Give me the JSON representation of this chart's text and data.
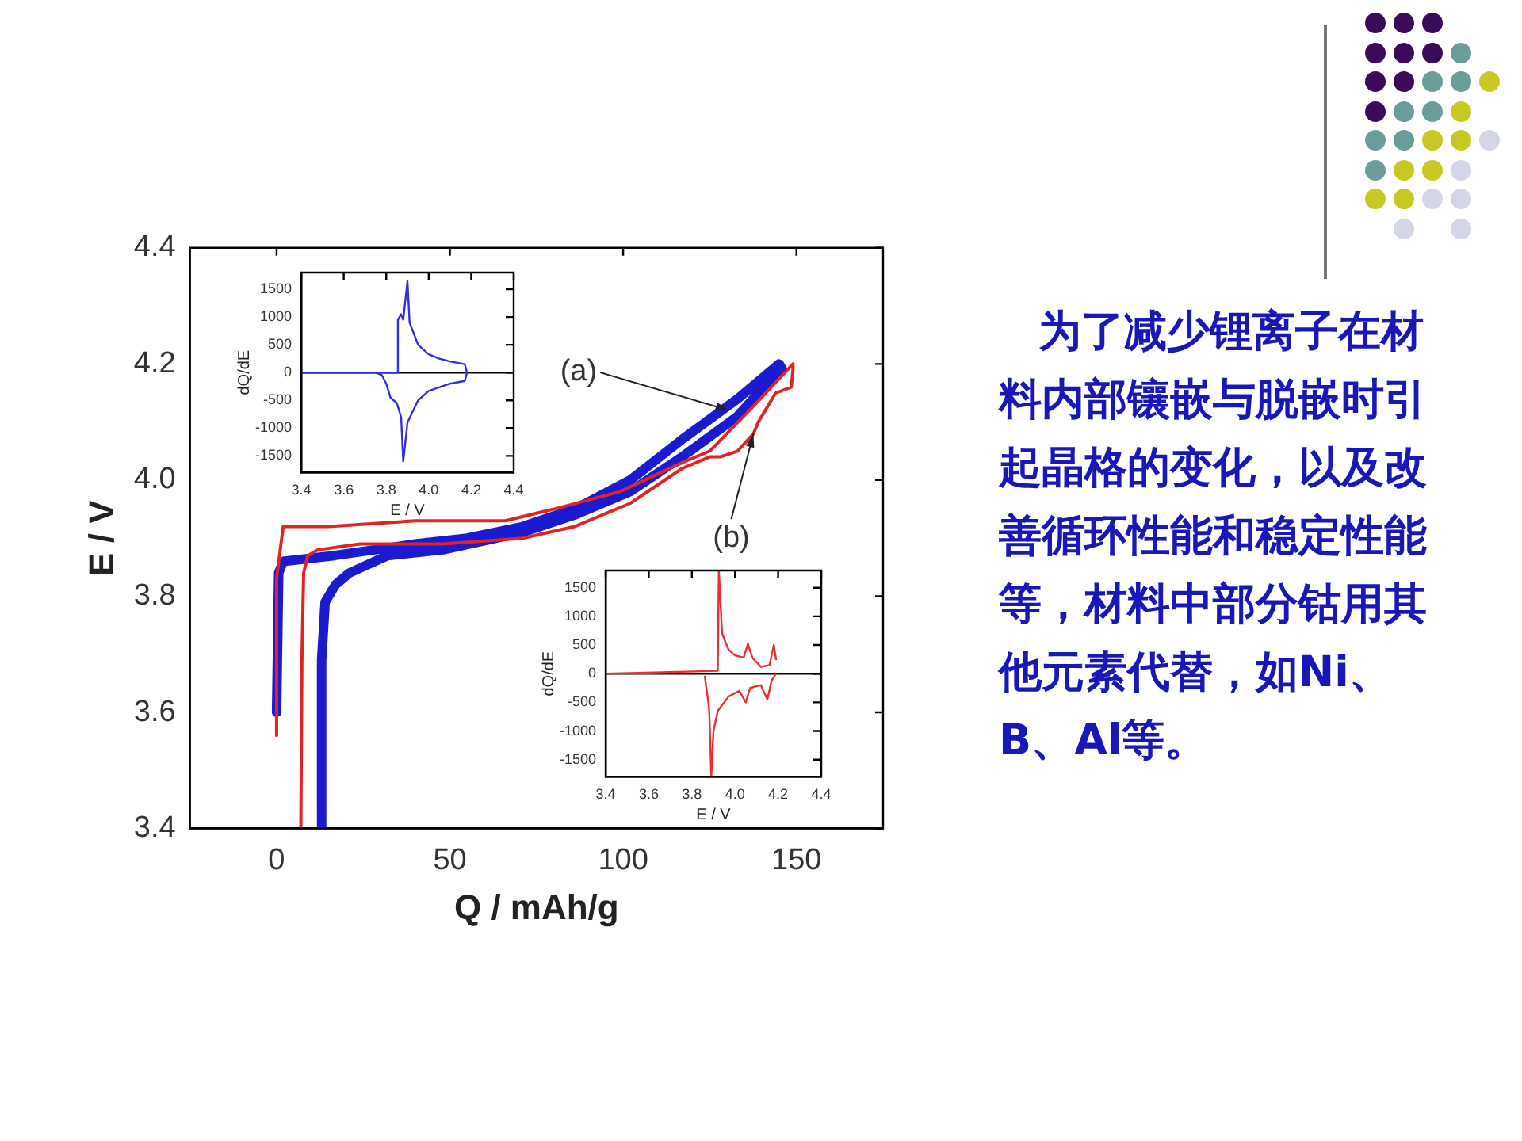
{
  "chart_data": [
    {
      "type": "line",
      "xlabel": "Q / mAh/g",
      "ylabel": "E / V",
      "xlim": [
        -25,
        175
      ],
      "ylim": [
        3.4,
        4.4
      ],
      "xticks": [
        0,
        50,
        100,
        150
      ],
      "yticks": [
        3.4,
        3.6,
        3.8,
        {
          "value": 4,
          "label": "4.0"
        },
        4.2,
        4.4
      ],
      "series": [
        {
          "color": "#e02424",
          "x": [
            0,
            0,
            1.9,
            15,
            40,
            66,
            80,
            99,
            117,
            125,
            138,
            149,
            149,
            148.5,
            144,
            139,
            137.6,
            133,
            128,
            125,
            117,
            102,
            86,
            71,
            48,
            24,
            12,
            9,
            7.8,
            7.3,
            7
          ],
          "values": [
            3.56,
            3.83,
            3.92,
            3.92,
            3.93,
            3.93,
            3.95,
            3.98,
            4.03,
            4.05,
            4.13,
            4.2,
            4.19,
            4.16,
            4.15,
            4.1,
            4.08,
            4.05,
            4.04,
            4.04,
            4.02,
            3.96,
            3.92,
            3.9,
            3.89,
            3.89,
            3.88,
            3.87,
            3.84,
            3.69,
            3.4
          ]
        },
        {
          "color": "#1a1ad0",
          "x": [
            0,
            0.6,
            1.9,
            16.6,
            40,
            55,
            71,
            86,
            102,
            117,
            133,
            145,
            146,
            139,
            133,
            117,
            102,
            86,
            71,
            48,
            32,
            21,
            17,
            14,
            13,
            13
          ],
          "values": [
            3.6,
            3.84,
            3.86,
            3.87,
            3.89,
            3.9,
            3.92,
            3.95,
            4.0,
            4.07,
            4.14,
            4.2,
            4.19,
            4.15,
            4.11,
            4.04,
            3.98,
            3.94,
            3.91,
            3.88,
            3.87,
            3.84,
            3.82,
            3.79,
            3.69,
            3.4
          ]
        }
      ],
      "annotations": [
        {
          "text": "(a)",
          "x": 130.6,
          "y": 4.12
        },
        {
          "text": "(b)",
          "x": 137.6,
          "y": 4.08
        }
      ]
    },
    {
      "type": "line",
      "xlabel": "E / V",
      "ylabel": "dQ/dE",
      "xlim": [
        3.4,
        4.4
      ],
      "ylim": [
        -1800,
        1800
      ],
      "xticks": [
        3.4,
        3.6,
        3.8,
        {
          "value": 4,
          "label": "4.0"
        },
        4.2,
        4.4
      ],
      "yticks": [
        -1500,
        -1000,
        -500,
        0,
        500,
        1000,
        1500
      ],
      "series": [
        {
          "color": "#3030e0",
          "x": [
            3.4,
            3.85,
            3.855,
            3.87,
            3.88,
            3.9,
            3.91,
            3.95,
            4.0,
            4.05,
            4.1,
            4.17,
            4.18
          ],
          "values": [
            0,
            0,
            950,
            1050,
            950,
            1650,
            900,
            500,
            330,
            250,
            200,
            150,
            0
          ]
        },
        {
          "color": "#3030e0",
          "x": [
            3.75,
            3.78,
            3.8,
            3.82,
            3.85,
            3.87,
            3.88,
            3.9,
            3.95,
            4.0,
            4.1,
            4.17,
            4.18
          ],
          "values": [
            0,
            -50,
            -200,
            -450,
            -550,
            -800,
            -1600,
            -900,
            -500,
            -330,
            -200,
            -150,
            0
          ]
        }
      ],
      "ref_lines": [
        {
          "axis": "y",
          "value": 0,
          "color": "#000000"
        }
      ]
    },
    {
      "type": "line",
      "xlabel": "E / V",
      "ylabel": "dQ/dE",
      "xlim": [
        3.4,
        4.4
      ],
      "ylim": [
        -1800,
        1800
      ],
      "xticks": [
        3.4,
        3.6,
        3.8,
        {
          "value": 4,
          "label": "4.0"
        },
        4.2,
        4.4
      ],
      "yticks": [
        -1500,
        -1000,
        -500,
        0,
        500,
        1000,
        1500
      ],
      "series": [
        {
          "color": "#e83030",
          "x": [
            3.4,
            3.92,
            3.925,
            3.94,
            3.97,
            4.0,
            4.04,
            4.06,
            4.08,
            4.12,
            4.16,
            4.18,
            4.19
          ],
          "values": [
            0,
            50,
            1800,
            700,
            420,
            320,
            280,
            520,
            280,
            120,
            150,
            500,
            250
          ]
        },
        {
          "color": "#e83030",
          "x": [
            3.86,
            3.88,
            3.89,
            3.9,
            3.92,
            3.97,
            4.02,
            4.05,
            4.07,
            4.12,
            4.15,
            4.17,
            4.19
          ],
          "values": [
            -50,
            -600,
            -1800,
            -1000,
            -650,
            -400,
            -300,
            -500,
            -250,
            -200,
            -450,
            -120,
            0
          ]
        }
      ],
      "ref_lines": [
        {
          "axis": "y",
          "value": 0,
          "color": "#000000"
        }
      ]
    },
    {
      "type": "other",
      "annotations": [
        "为了减少锂离子在材料内部镶嵌与脱嵌时引起晶格的变化，以及改善循环性能和稳定性能等，材料中部分钴用其他元素代替，如Ni、B、Al等。"
      ]
    }
  ]
}
